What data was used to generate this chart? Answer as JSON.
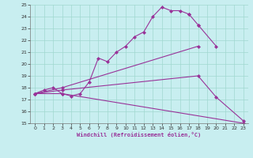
{
  "title": "",
  "xlabel": "Windchill (Refroidissement éolien,°C)",
  "xlim": [
    -0.5,
    23.5
  ],
  "ylim": [
    15,
    25
  ],
  "xticks": [
    0,
    1,
    2,
    3,
    4,
    5,
    6,
    7,
    8,
    9,
    10,
    11,
    12,
    13,
    14,
    15,
    16,
    17,
    18,
    19,
    20,
    21,
    22,
    23
  ],
  "yticks": [
    15,
    16,
    17,
    18,
    19,
    20,
    21,
    22,
    23,
    24,
    25
  ],
  "background_color": "#c8eef0",
  "grid_color": "#a0d8d0",
  "line_color": "#993399",
  "series": [
    {
      "name": "main_curve",
      "x": [
        0,
        1,
        2,
        3,
        4,
        5,
        6,
        7,
        8,
        9,
        10,
        11,
        12,
        13,
        14,
        15,
        16,
        17
      ],
      "y": [
        17.5,
        17.8,
        18.0,
        17.5,
        17.3,
        17.5,
        18.5,
        20.5,
        20.2,
        21.0,
        21.5,
        22.3,
        22.7,
        24.0,
        24.8,
        24.5,
        24.5,
        24.2
      ]
    },
    {
      "name": "curve2_part1",
      "x": [
        17,
        18
      ],
      "y": [
        24.2,
        23.3
      ]
    },
    {
      "name": "curve2_cont",
      "x": [
        18,
        20
      ],
      "y": [
        23.3,
        21.5
      ]
    },
    {
      "name": "line_upper",
      "x": [
        0,
        3,
        18
      ],
      "y": [
        17.5,
        18.0,
        21.5
      ]
    },
    {
      "name": "line_mid",
      "x": [
        0,
        3,
        18,
        20,
        23
      ],
      "y": [
        17.5,
        17.8,
        19.0,
        17.2,
        15.2
      ]
    },
    {
      "name": "line_lower",
      "x": [
        0,
        3,
        23
      ],
      "y": [
        17.5,
        17.5,
        15.0
      ]
    }
  ]
}
